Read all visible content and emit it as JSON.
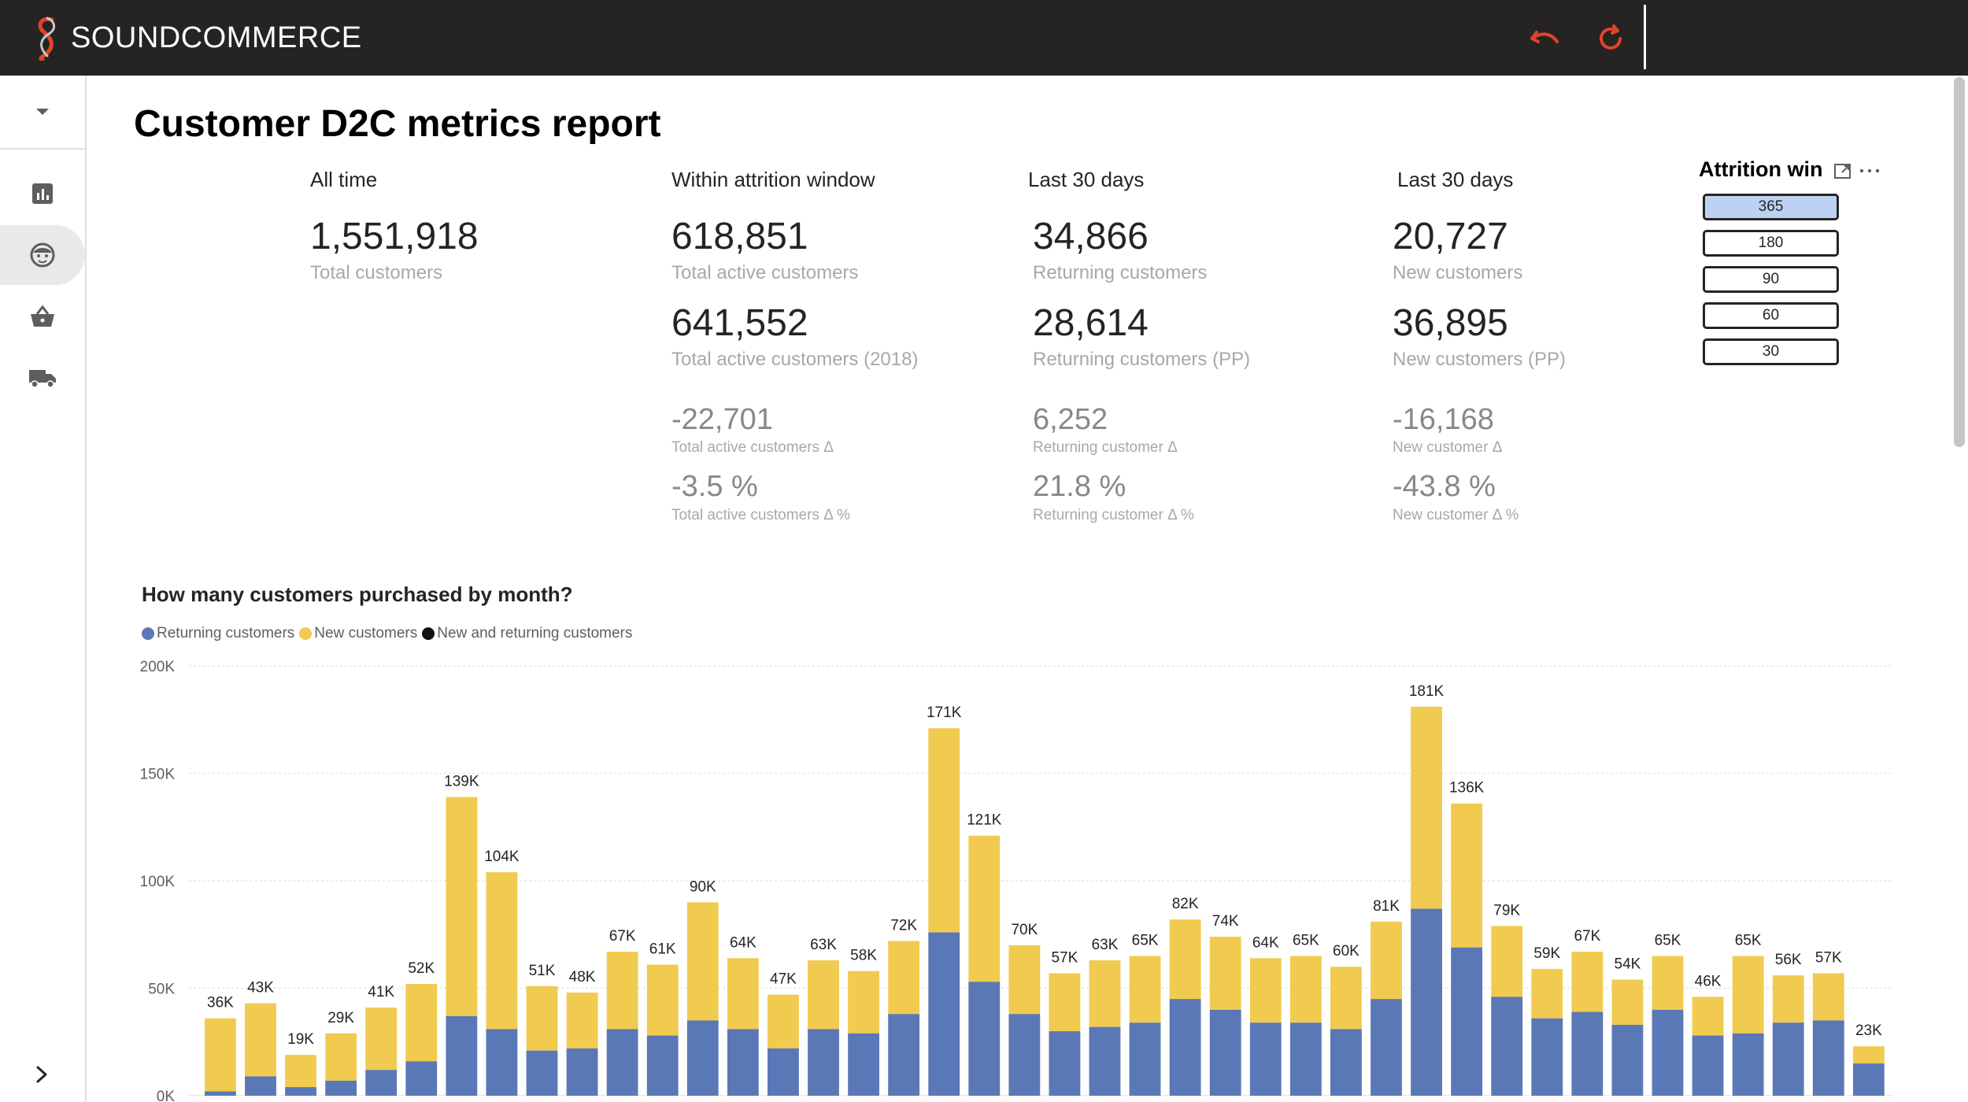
{
  "app": {
    "brand": "SOUNDCOMMERCE"
  },
  "report": {
    "title": "Customer D2C metrics report"
  },
  "kpis": {
    "all_time": {
      "header": "All time",
      "value": "1,551,918",
      "label": "Total customers"
    },
    "attrition": {
      "header": "Within attrition window",
      "value": "618,851",
      "label": "Total active customers",
      "value2": "641,552",
      "label2": "Total active customers (2018)",
      "delta": "-22,701",
      "delta_label": "Total active customers Δ",
      "pct": "-3.5 %",
      "pct_label": "Total active customers Δ %"
    },
    "returning": {
      "header": "Last 30 days",
      "value": "34,866",
      "label": "Returning customers",
      "value2": "28,614",
      "label2": "Returning customers (PP)",
      "delta": "6,252",
      "delta_label": "Returning customer Δ",
      "pct": "21.8 %",
      "pct_label": "Returning customer Δ %"
    },
    "new": {
      "header": "Last 30 days",
      "value": "20,727",
      "label": "New customers",
      "value2": "36,895",
      "label2": "New customers (PP)",
      "delta": "-16,168",
      "delta_label": "New customer Δ",
      "pct": "-43.8 %",
      "pct_label": "New customer Δ %"
    }
  },
  "slicer": {
    "title": "Attrition win",
    "options": [
      "365",
      "180",
      "90",
      "60",
      "30"
    ],
    "selected": "365"
  },
  "colors": {
    "returning": "#5b78b6",
    "new": "#f0cb50",
    "combined": "#111111",
    "accent": "#e2432a"
  },
  "icons": {
    "sidebar": [
      "bar-chart-icon",
      "customer-face-icon",
      "basket-icon",
      "truck-icon"
    ],
    "toolbar": [
      "undo-icon",
      "refresh-icon"
    ]
  },
  "chart_data": {
    "type": "bar",
    "stacked": true,
    "title": "How many customers purchased by month?",
    "legend": [
      "Returning customers",
      "New customers",
      "New and returning customers"
    ],
    "legend_position": "top-left",
    "y_ticks": [
      "0K",
      "50K",
      "100K",
      "150K",
      "200K"
    ],
    "ylim": [
      0,
      200000
    ],
    "grid": true,
    "total_labels": [
      "36K",
      "43K",
      "19K",
      "29K",
      "41K",
      "52K",
      "139K",
      "104K",
      "51K",
      "48K",
      "67K",
      "61K",
      "90K",
      "64K",
      "47K",
      "63K",
      "58K",
      "72K",
      "171K",
      "121K",
      "70K",
      "57K",
      "63K",
      "65K",
      "82K",
      "74K",
      "64K",
      "65K",
      "60K",
      "81K",
      "181K",
      "136K",
      "79K",
      "59K",
      "67K",
      "54K",
      "65K",
      "46K",
      "65K",
      "56K",
      "57K",
      "23K"
    ],
    "series": [
      {
        "name": "Returning customers",
        "values": [
          2000,
          9000,
          4000,
          7000,
          12000,
          16000,
          37000,
          31000,
          21000,
          22000,
          31000,
          28000,
          35000,
          31000,
          22000,
          31000,
          29000,
          38000,
          76000,
          53000,
          38000,
          30000,
          32000,
          34000,
          45000,
          40000,
          34000,
          34000,
          31000,
          45000,
          87000,
          69000,
          46000,
          36000,
          39000,
          33000,
          40000,
          28000,
          29000,
          34000,
          35000,
          15000
        ]
      },
      {
        "name": "New customers",
        "values": [
          34000,
          34000,
          15000,
          22000,
          29000,
          36000,
          102000,
          73000,
          30000,
          26000,
          36000,
          33000,
          55000,
          33000,
          25000,
          32000,
          29000,
          34000,
          95000,
          68000,
          32000,
          27000,
          31000,
          31000,
          37000,
          34000,
          30000,
          31000,
          29000,
          36000,
          94000,
          67000,
          33000,
          23000,
          28000,
          21000,
          25000,
          18000,
          36000,
          22000,
          22000,
          8000
        ]
      }
    ]
  }
}
